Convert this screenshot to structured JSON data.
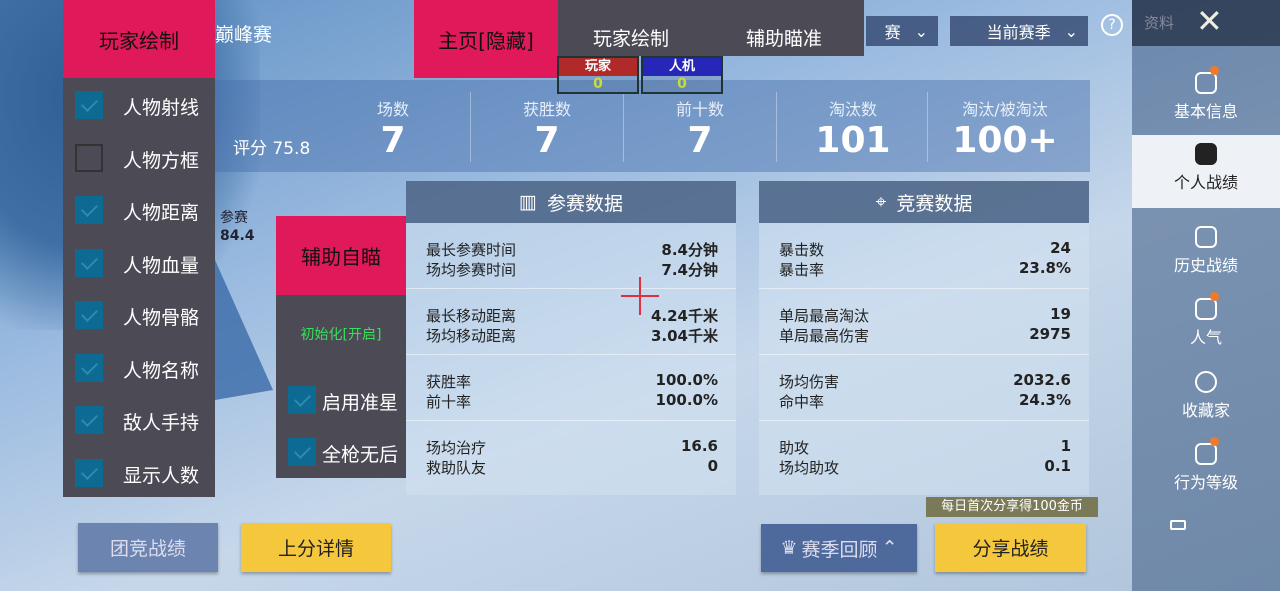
{
  "game": {
    "mode_title": "巅峰赛",
    "rating_label": "评分",
    "rating": "75.8",
    "stats": [
      {
        "label": "场数",
        "value": "7"
      },
      {
        "label": "获胜数",
        "value": "7"
      },
      {
        "label": "前十数",
        "value": "7"
      },
      {
        "label": "淘汰数",
        "value": "101"
      },
      {
        "label": "淘汰/被淘汰",
        "value": "100+"
      }
    ],
    "dropdowns": [
      {
        "value": "赛"
      },
      {
        "value": "当前赛季"
      }
    ],
    "radar": {
      "label": "参赛",
      "value": "84.4"
    },
    "panel_left": {
      "title": "参赛数据",
      "rows": [
        [
          "最长参赛时间",
          "8.4分钟"
        ],
        [
          "场均参赛时间",
          "7.4分钟"
        ],
        [
          "最长移动距离",
          "4.24千米"
        ],
        [
          "场均移动距离",
          "3.04千米"
        ],
        [
          "获胜率",
          "100.0%"
        ],
        [
          "前十率",
          "100.0%"
        ],
        [
          "场均治疗",
          "16.6"
        ],
        [
          "救助队友",
          "0"
        ]
      ]
    },
    "panel_right": {
      "title": "竞赛数据",
      "rows": [
        [
          "暴击数",
          "24"
        ],
        [
          "暴击率",
          "23.8%"
        ],
        [
          "单局最高淘汰",
          "19"
        ],
        [
          "单局最高伤害",
          "2975"
        ],
        [
          "场均伤害",
          "2032.6"
        ],
        [
          "命中率",
          "24.3%"
        ],
        [
          "助攻",
          "1"
        ],
        [
          "场均助攻",
          "0.1"
        ]
      ]
    },
    "buttons": {
      "team": "团竞战绩",
      "rank": "上分详情",
      "season": "赛季回顾",
      "share": "分享战绩",
      "share_tip": "每日首次分享得100金币"
    },
    "sidebar": {
      "title": "资料",
      "items": [
        {
          "label": "基本信息",
          "dot": true
        },
        {
          "label": "个人战绩",
          "active": true
        },
        {
          "label": "历史战绩"
        },
        {
          "label": "人气",
          "dot": true
        },
        {
          "label": "收藏家"
        },
        {
          "label": "行为等级",
          "dot": true
        }
      ]
    }
  },
  "cheat": {
    "tabs": {
      "home": "主页[隐藏]",
      "draw": "玩家绘制",
      "aim": "辅助瞄准"
    },
    "draw_menu": {
      "title": "玩家绘制",
      "items": [
        {
          "label": "人物射线",
          "checked": true
        },
        {
          "label": "人物方框",
          "checked": false
        },
        {
          "label": "人物距离",
          "checked": true
        },
        {
          "label": "人物血量",
          "checked": true
        },
        {
          "label": "人物骨骼",
          "checked": true
        },
        {
          "label": "人物名称",
          "checked": true
        },
        {
          "label": "敌人手持",
          "checked": true
        },
        {
          "label": "显示人数",
          "checked": true
        }
      ]
    },
    "aim_menu": {
      "title": "辅助自瞄",
      "status": "初始化[开启]",
      "items": [
        {
          "label": "启用准星",
          "checked": true
        },
        {
          "label": "全枪无后",
          "checked": true
        }
      ]
    },
    "counters": [
      {
        "label": "玩家",
        "value": "0",
        "color": "#b02a2a"
      },
      {
        "label": "人机",
        "value": "0",
        "color": "#2626b8"
      }
    ],
    "colors": {
      "accent": "#e0195a",
      "panel": "#4b4a55",
      "status": "#38e05a"
    }
  }
}
